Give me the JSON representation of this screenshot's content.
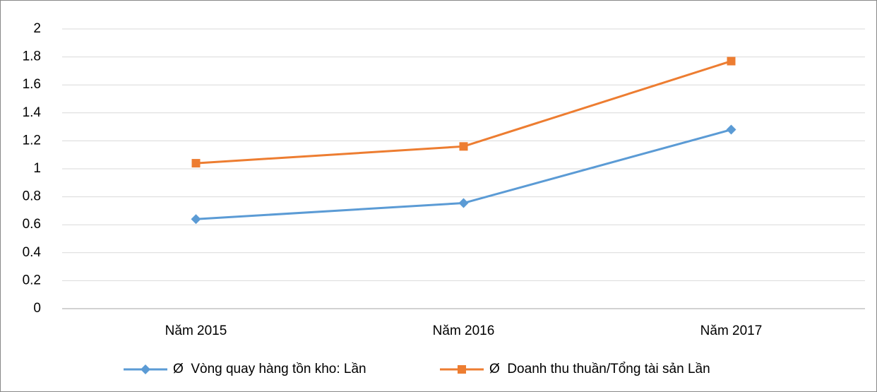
{
  "chart_data": {
    "type": "line",
    "categories": [
      "Năm 2015",
      "Năm 2016",
      "Năm 2017"
    ],
    "series": [
      {
        "name": "Ø  Vòng quay hàng tồn kho: Lần",
        "color": "#5b9bd5",
        "marker": "diamond",
        "values": [
          0.64,
          0.755,
          1.28
        ]
      },
      {
        "name": "Ø  Doanh thu thuần/Tổng tài sản Lần",
        "color": "#ed7d31",
        "marker": "square",
        "values": [
          1.04,
          1.16,
          1.77
        ]
      }
    ],
    "ylim": [
      0,
      2
    ],
    "yticks": [
      0,
      0.2,
      0.4,
      0.6,
      0.8,
      1,
      1.2,
      1.4,
      1.6,
      1.8,
      2
    ],
    "grid": true,
    "legend": "bottom"
  }
}
